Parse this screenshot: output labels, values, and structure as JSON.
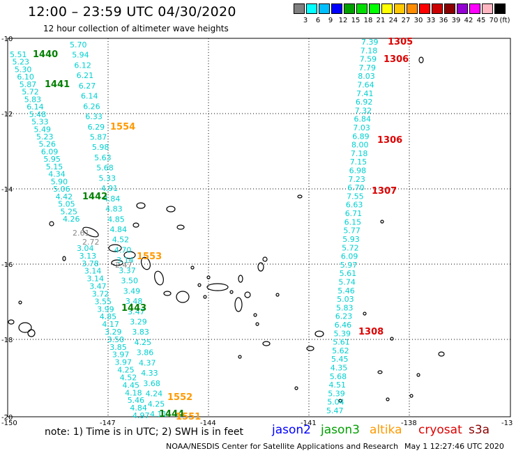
{
  "header": {
    "title": "12:00 – 23:59 UTC 04/30/2020",
    "subtitle": "12 hour collection of altimeter wave heights"
  },
  "scale": {
    "unit": "(ft)",
    "colors": [
      "#808080",
      "#00ffff",
      "#00bfff",
      "#0000ff",
      "#00a000",
      "#00dd00",
      "#00ff00",
      "#ffff00",
      "#ffc800",
      "#ff8c00",
      "#ff0000",
      "#cc0000",
      "#8b0000",
      "#9400d3",
      "#ff00ff",
      "#ffb6c1",
      "#000000"
    ],
    "labels": [
      "3",
      "6",
      "9",
      "12",
      "15",
      "18",
      "21",
      "24",
      "27",
      "30",
      "33",
      "36",
      "39",
      "42",
      "45",
      "70"
    ]
  },
  "axes": {
    "lat_labels": [
      "-10",
      "-12",
      "-14",
      "-16",
      "-18",
      "-20"
    ],
    "lon_labels": [
      "-150",
      "-147",
      "-144",
      "-141",
      "-138",
      "-13"
    ]
  },
  "pass_labels": {
    "green": [
      "1440",
      "1441",
      "1442",
      "1443",
      "1444"
    ],
    "orange": [
      "1554",
      "1553",
      "1552",
      "1551"
    ],
    "red": [
      "1305",
      "1306",
      "1306",
      "1307",
      "1308"
    ]
  },
  "tracks": {
    "a": [
      "5.51",
      "5.23",
      "5.30",
      "6.10",
      "5.87",
      "5.72",
      "5.83",
      "6.14",
      "5.48",
      "5.33",
      "5.49",
      "5.23",
      "5.26",
      "6.09",
      "5.95",
      "5.15",
      "4.34",
      "5.90",
      "5.06",
      "4.42",
      "5.05",
      "5.25",
      "4.26"
    ],
    "b": [
      "5.70",
      "5.94",
      "6.12",
      "6.21",
      "6.27",
      "6.14",
      "6.26",
      "6.33",
      "6.29",
      "5.87",
      "5.98",
      "5.63",
      "5.68",
      "5.33",
      "4.91",
      "4.84",
      "4.83",
      "4.85",
      "4.84",
      "4.52",
      "4.70",
      "3.14",
      "3.37",
      "3.50",
      "3.49",
      "3.48",
      "3.47",
      "3.29",
      "3.83",
      "4.25",
      "3.86",
      "4.37",
      "4.33",
      "3.68",
      "4.24",
      "4.25",
      "4.11"
    ],
    "c": [
      "3.04",
      "3.13",
      "3.78",
      "3.14",
      "3.14",
      "3.47",
      "3.72",
      "3.55",
      "3.99",
      "4.85",
      "4.17",
      "3.29",
      "3.50",
      "3.85",
      "3.97",
      "3.97",
      "4.25",
      "4.52",
      "4.45",
      "4.18",
      "5.46",
      "4.84",
      "4.97"
    ],
    "d": [
      "7.39",
      "7.18",
      "7.59",
      "7.79",
      "8.03",
      "7.64",
      "7.41",
      "6.92",
      "7.32",
      "6.84",
      "7.03",
      "6.89",
      "8.00",
      "7.18",
      "7.15",
      "6.98",
      "7.23",
      "6.70",
      "7.55",
      "6.63",
      "6.71",
      "6.15",
      "5.77",
      "5.93",
      "5.72",
      "6.09",
      "5.97",
      "5.61",
      "5.74",
      "5.46",
      "5.03",
      "5.83",
      "6.23",
      "6.46",
      "5.39",
      "5.61",
      "5.62",
      "5.45",
      "4.35",
      "5.68",
      "4.51",
      "5.39",
      "5.04",
      "5.47"
    ],
    "gray": [
      "2.61",
      "2.72",
      "2.47"
    ]
  },
  "footer": {
    "note": "note:  1) Time is in UTC;  2) SWH is in feet",
    "sat_jason2": "jason2",
    "sat_jason3": "jason3",
    "sat_altika": "altika",
    "sat_cryosat": "cryosat",
    "sat_s3a": "s3a",
    "credit": "NOAA/NESDIS Center for Satellite Applications and Research",
    "timestamp": "May  1 12:27:46 UTC 2020"
  }
}
